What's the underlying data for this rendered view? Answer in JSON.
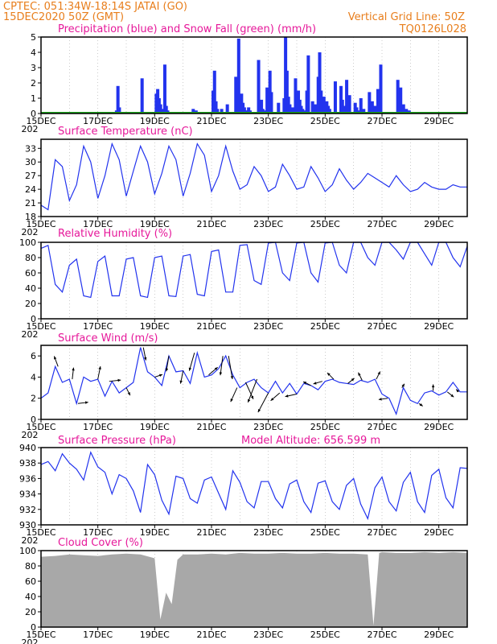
{
  "header": {
    "line1_left": "CPTEC:  051:34W-18:14S  JATAI (GO)",
    "line2_left": "15DEC2020 50Z (GMT)",
    "line2_right": "Vertical Grid Line: 50Z",
    "line3_right": "TQ0126L028",
    "color": "#e87e1c"
  },
  "colors": {
    "title": "#e6189a",
    "line": "#2233ee",
    "bar": "#2233ee",
    "snow": "#1faa1f",
    "cloud": "#a8a8a8"
  },
  "panels": {
    "precip": {
      "title": "Precipitation (blue) and Snow Fall (green) (mm/h)",
      "yticks": [
        "0",
        "1",
        "2",
        "3",
        "4",
        "5"
      ]
    },
    "temp": {
      "title": "Surface Temperature (nC)",
      "yticks": [
        "18",
        "21",
        "24",
        "27",
        "30",
        "33"
      ]
    },
    "rh": {
      "title": "Relative Humidity (%)",
      "yticks": [
        "0",
        "20",
        "40",
        "60",
        "80",
        "100"
      ]
    },
    "wind": {
      "title": "Surface Wind (m/s)",
      "yticks": [
        "0",
        "2",
        "4",
        "6"
      ]
    },
    "press": {
      "title": "Surface Pressure (hPa)",
      "extra": "Model Altitude: 656.599 m",
      "yticks": [
        "930",
        "932",
        "934",
        "936",
        "938",
        "940"
      ]
    },
    "cloud": {
      "title": "Cloud Cover (%)",
      "yticks": [
        "0",
        "20",
        "40",
        "60",
        "80",
        "100"
      ]
    }
  },
  "date_labels": [
    "15DEC",
    "17DEC",
    "19DEC",
    "21DEC",
    "23DEC",
    "25DEC",
    "27DEC",
    "29DEC"
  ],
  "year_stub": "202",
  "chart_data": [
    {
      "type": "bar",
      "title": "Precipitation (blue) and Snow Fall (green) (mm/h)",
      "x_days": [
        2.6,
        2.65,
        2.7,
        3.5,
        4.0,
        4.05,
        4.1,
        4.15,
        4.2,
        4.3,
        4.35,
        4.4,
        5.3,
        5.4,
        6.0,
        6.05,
        6.1,
        6.15,
        6.3,
        6.5,
        6.8,
        6.9,
        7.0,
        7.05,
        7.1,
        7.15,
        7.2,
        7.25,
        7.3,
        7.6,
        7.7,
        7.75,
        7.8,
        7.9,
        8.0,
        8.05,
        8.3,
        8.5,
        8.55,
        8.6,
        8.65,
        8.7,
        8.8,
        8.9,
        9.0,
        9.05,
        9.1,
        9.15,
        9.2,
        9.3,
        9.35,
        9.5,
        9.6,
        9.65,
        9.7,
        9.75,
        9.8,
        9.9,
        10.0,
        10.05,
        10.1,
        10.3,
        10.5,
        10.55,
        10.6,
        10.7,
        10.8,
        11.0,
        11.05,
        11.1,
        11.2,
        11.3,
        11.5,
        11.6,
        11.7,
        11.8,
        11.9,
        12.5,
        12.6,
        12.7,
        12.8,
        12.9
      ],
      "values": [
        0.2,
        1.8,
        0.4,
        2.3,
        1.3,
        1.6,
        1.0,
        0.6,
        0.3,
        3.2,
        0.5,
        0.2,
        0.3,
        0.2,
        1.5,
        2.8,
        0.8,
        0.3,
        0.3,
        0.6,
        2.4,
        4.9,
        1.3,
        0.7,
        0.4,
        0.2,
        0.2,
        0.4,
        0.2,
        3.5,
        0.9,
        0.3,
        0.2,
        1.7,
        2.8,
        1.4,
        0.7,
        1.0,
        5.0,
        2.8,
        1.1,
        0.6,
        0.4,
        2.3,
        1.5,
        0.9,
        0.5,
        0.3,
        0.2,
        1.5,
        3.8,
        0.8,
        0.6,
        0.3,
        2.4,
        4.0,
        1.5,
        1.1,
        0.8,
        0.5,
        0.3,
        2.1,
        1.8,
        0.9,
        0.5,
        2.2,
        1.2,
        0.7,
        0.4,
        0.2,
        1.0,
        0.3,
        1.4,
        0.8,
        0.5,
        1.6,
        3.2,
        2.2,
        1.7,
        0.6,
        0.3,
        0.2
      ],
      "snow": 0,
      "ylim": [
        0,
        5
      ],
      "xlim_days": [
        0,
        15
      ]
    },
    {
      "type": "line",
      "title": "Surface Temperature (nC)",
      "x_days": [
        0,
        0.25,
        0.5,
        0.75,
        1,
        1.25,
        1.5,
        1.75,
        2,
        2.25,
        2.5,
        2.75,
        3,
        3.25,
        3.5,
        3.75,
        4,
        4.25,
        4.5,
        4.75,
        5,
        5.25,
        5.5,
        5.75,
        6,
        6.25,
        6.5,
        6.75,
        7,
        7.25,
        7.5,
        7.75,
        8,
        8.25,
        8.5,
        8.75,
        9,
        9.25,
        9.5,
        9.75,
        10,
        10.25,
        10.5,
        10.75,
        11,
        11.25,
        11.5,
        11.75,
        12,
        12.25,
        12.5,
        12.75,
        13,
        13.25,
        13.5,
        13.75,
        14,
        14.25,
        14.5,
        14.75,
        15
      ],
      "values": [
        20.5,
        19.5,
        30.5,
        29.0,
        21.5,
        25.0,
        33.5,
        30.0,
        22.0,
        27.0,
        34.0,
        30.5,
        22.5,
        28.0,
        33.5,
        30.0,
        23.0,
        27.5,
        33.5,
        30.5,
        22.5,
        27.5,
        34.0,
        31.5,
        23.5,
        27.0,
        33.5,
        28.0,
        24.0,
        25.0,
        29.0,
        27.0,
        23.5,
        24.5,
        29.5,
        27.0,
        24.0,
        24.5,
        29.0,
        26.5,
        23.5,
        25.0,
        28.5,
        26.0,
        24.0,
        25.5,
        27.5,
        26.5,
        25.5,
        24.5,
        27.0,
        25.0,
        23.5,
        24.0,
        25.5,
        24.5,
        24.0,
        24.0,
        25.0,
        24.5,
        24.5
      ],
      "ylim": [
        18,
        35
      ],
      "xlim_days": [
        0,
        15
      ]
    },
    {
      "type": "line",
      "title": "Relative Humidity (%)",
      "x_days": [
        0,
        0.25,
        0.5,
        0.75,
        1,
        1.25,
        1.5,
        1.75,
        2,
        2.25,
        2.5,
        2.75,
        3,
        3.25,
        3.5,
        3.75,
        4,
        4.25,
        4.5,
        4.75,
        5,
        5.25,
        5.5,
        5.75,
        6,
        6.25,
        6.5,
        6.75,
        7,
        7.25,
        7.5,
        7.75,
        8,
        8.25,
        8.5,
        8.75,
        9,
        9.25,
        9.5,
        9.75,
        10,
        10.25,
        10.5,
        10.75,
        11,
        11.25,
        11.5,
        11.75,
        12,
        12.25,
        12.5,
        12.75,
        13,
        13.25,
        13.5,
        13.75,
        14,
        14.25,
        14.5,
        14.75,
        15
      ],
      "values": [
        92,
        96,
        45,
        35,
        70,
        78,
        30,
        28,
        75,
        82,
        30,
        30,
        78,
        80,
        30,
        28,
        80,
        82,
        30,
        29,
        82,
        84,
        32,
        30,
        88,
        90,
        35,
        35,
        96,
        97,
        50,
        45,
        99,
        100,
        60,
        50,
        99,
        100,
        60,
        48,
        99,
        100,
        70,
        60,
        100,
        100,
        80,
        70,
        100,
        100,
        90,
        78,
        100,
        100,
        85,
        70,
        100,
        100,
        80,
        68,
        95
      ],
      "ylim": [
        0,
        100
      ],
      "xlim_days": [
        0,
        15
      ]
    },
    {
      "type": "line",
      "title": "Surface Wind (m/s)",
      "x_days": [
        0,
        0.25,
        0.5,
        0.75,
        1,
        1.25,
        1.5,
        1.75,
        2,
        2.25,
        2.5,
        2.75,
        3,
        3.25,
        3.5,
        3.75,
        4,
        4.25,
        4.5,
        4.75,
        5,
        5.25,
        5.5,
        5.75,
        6,
        6.25,
        6.5,
        6.75,
        7,
        7.25,
        7.5,
        7.75,
        8,
        8.25,
        8.5,
        8.75,
        9,
        9.25,
        9.5,
        9.75,
        10,
        10.25,
        10.5,
        10.75,
        11,
        11.25,
        11.5,
        11.75,
        12,
        12.25,
        12.5,
        12.75,
        13,
        13.25,
        13.5,
        13.75,
        14,
        14.25,
        14.5,
        14.75,
        15
      ],
      "values": [
        2.0,
        2.5,
        5.0,
        3.5,
        3.8,
        1.5,
        4.0,
        3.6,
        3.8,
        2.2,
        3.6,
        2.5,
        3.0,
        3.5,
        6.8,
        4.5,
        4.0,
        3.2,
        6.0,
        4.5,
        4.6,
        3.4,
        6.3,
        4.0,
        4.2,
        4.8,
        6.0,
        4.2,
        3.0,
        3.5,
        3.8,
        3.0,
        2.5,
        3.6,
        2.5,
        3.4,
        2.4,
        3.4,
        3.2,
        2.8,
        3.6,
        3.8,
        3.5,
        3.4,
        3.3,
        3.7,
        3.5,
        3.8,
        2.4,
        2.0,
        0.5,
        3.0,
        1.8,
        1.5,
        2.5,
        2.7,
        2.3,
        2.6,
        3.5,
        2.6,
        2.6
      ],
      "vectors": [
        {
          "d": 0.6,
          "u": -0.3,
          "v": 0.8
        },
        {
          "d": 1.1,
          "u": 0.1,
          "v": 0.9
        },
        {
          "d": 1.3,
          "u": 0.8,
          "v": 0.1
        },
        {
          "d": 2.0,
          "u": 0.2,
          "v": 1.0
        },
        {
          "d": 2.4,
          "u": 0.9,
          "v": 0.1
        },
        {
          "d": 3.0,
          "u": 0.3,
          "v": -0.6
        },
        {
          "d": 3.6,
          "u": 0.2,
          "v": -1.0
        },
        {
          "d": 4.0,
          "u": 0.6,
          "v": 0.2
        },
        {
          "d": 4.5,
          "u": -0.2,
          "v": -1.2
        },
        {
          "d": 5.0,
          "u": -0.2,
          "v": -1.0
        },
        {
          "d": 5.4,
          "u": -0.4,
          "v": -1.4
        },
        {
          "d": 5.9,
          "u": 0.7,
          "v": 0.6
        },
        {
          "d": 6.4,
          "u": -0.2,
          "v": -1.5
        },
        {
          "d": 6.6,
          "u": 0.3,
          "v": -1.8
        },
        {
          "d": 6.9,
          "u": -0.5,
          "v": -1.1
        },
        {
          "d": 7.2,
          "u": 0.6,
          "v": -1.3
        },
        {
          "d": 7.6,
          "u": -0.7,
          "v": -1.8
        },
        {
          "d": 8.0,
          "u": -0.8,
          "v": -1.5
        },
        {
          "d": 8.4,
          "u": -0.7,
          "v": -0.6
        },
        {
          "d": 9.0,
          "u": -0.9,
          "v": -0.2
        },
        {
          "d": 9.5,
          "u": -0.6,
          "v": 0.3
        },
        {
          "d": 9.9,
          "u": -0.7,
          "v": -0.2
        },
        {
          "d": 10.3,
          "u": -0.5,
          "v": 0.5
        },
        {
          "d": 10.8,
          "u": 0.5,
          "v": 0.4
        },
        {
          "d": 11.3,
          "u": -0.3,
          "v": 0.6
        },
        {
          "d": 11.8,
          "u": 0.3,
          "v": 0.6
        },
        {
          "d": 12.2,
          "u": -0.7,
          "v": -0.1
        },
        {
          "d": 12.7,
          "u": 0.2,
          "v": 0.3
        },
        {
          "d": 13.3,
          "u": 0.3,
          "v": -0.2
        },
        {
          "d": 13.8,
          "u": 0.0,
          "v": 0.5
        },
        {
          "d": 14.3,
          "u": 0.5,
          "v": -0.4
        },
        {
          "d": 14.7,
          "u": -0.2,
          "v": 0.2
        }
      ],
      "ylim": [
        0,
        7
      ],
      "xlim_days": [
        0,
        15
      ]
    },
    {
      "type": "line",
      "title": "Surface Pressure (hPa)",
      "x_days": [
        0,
        0.25,
        0.5,
        0.75,
        1,
        1.25,
        1.5,
        1.75,
        2,
        2.25,
        2.5,
        2.75,
        3,
        3.25,
        3.5,
        3.75,
        4,
        4.25,
        4.5,
        4.75,
        5,
        5.25,
        5.5,
        5.75,
        6,
        6.25,
        6.5,
        6.75,
        7,
        7.25,
        7.5,
        7.75,
        8,
        8.25,
        8.5,
        8.75,
        9,
        9.25,
        9.5,
        9.75,
        10,
        10.25,
        10.5,
        10.75,
        11,
        11.25,
        11.5,
        11.75,
        12,
        12.25,
        12.5,
        12.75,
        13,
        13.25,
        13.5,
        13.75,
        14,
        14.25,
        14.5,
        14.75,
        15
      ],
      "values": [
        937.8,
        938.2,
        937.0,
        939.2,
        938.0,
        937.2,
        935.8,
        939.4,
        937.5,
        936.8,
        934.0,
        936.5,
        936.0,
        934.4,
        931.6,
        937.8,
        936.5,
        933.2,
        931.4,
        936.3,
        936.0,
        933.4,
        932.8,
        935.8,
        936.2,
        934.1,
        932.0,
        937.0,
        935.5,
        933.0,
        932.2,
        935.6,
        935.6,
        933.4,
        932.2,
        935.3,
        935.8,
        933.0,
        931.6,
        935.4,
        935.7,
        933.0,
        932.0,
        935.1,
        936.0,
        932.7,
        930.8,
        934.8,
        936.2,
        933.0,
        931.8,
        935.5,
        936.8,
        933.0,
        931.6,
        936.4,
        937.2,
        933.5,
        932.2,
        937.4,
        937.3
      ],
      "ylim": [
        930,
        940
      ],
      "xlim_days": [
        0,
        15
      ]
    },
    {
      "type": "area",
      "title": "Cloud Cover (%)",
      "x_days": [
        0,
        0.5,
        1,
        1.5,
        2,
        2.5,
        3,
        3.5,
        4,
        4.2,
        4.4,
        4.6,
        4.8,
        5,
        5.5,
        6,
        6.5,
        7,
        7.5,
        8,
        8.5,
        9,
        9.5,
        10,
        10.5,
        11,
        11.5,
        11.7,
        11.9,
        12,
        12.5,
        13,
        13.5,
        14,
        14.5,
        15
      ],
      "values": [
        92,
        93,
        95,
        94,
        93,
        95,
        96,
        95,
        90,
        10,
        45,
        30,
        88,
        95,
        95,
        96,
        95,
        97,
        96,
        96,
        97,
        96,
        96,
        97,
        96,
        96,
        95,
        2,
        97,
        98,
        97,
        97,
        98,
        97,
        98,
        97
      ],
      "ylim": [
        0,
        100
      ],
      "xlim_days": [
        0,
        15
      ]
    }
  ]
}
